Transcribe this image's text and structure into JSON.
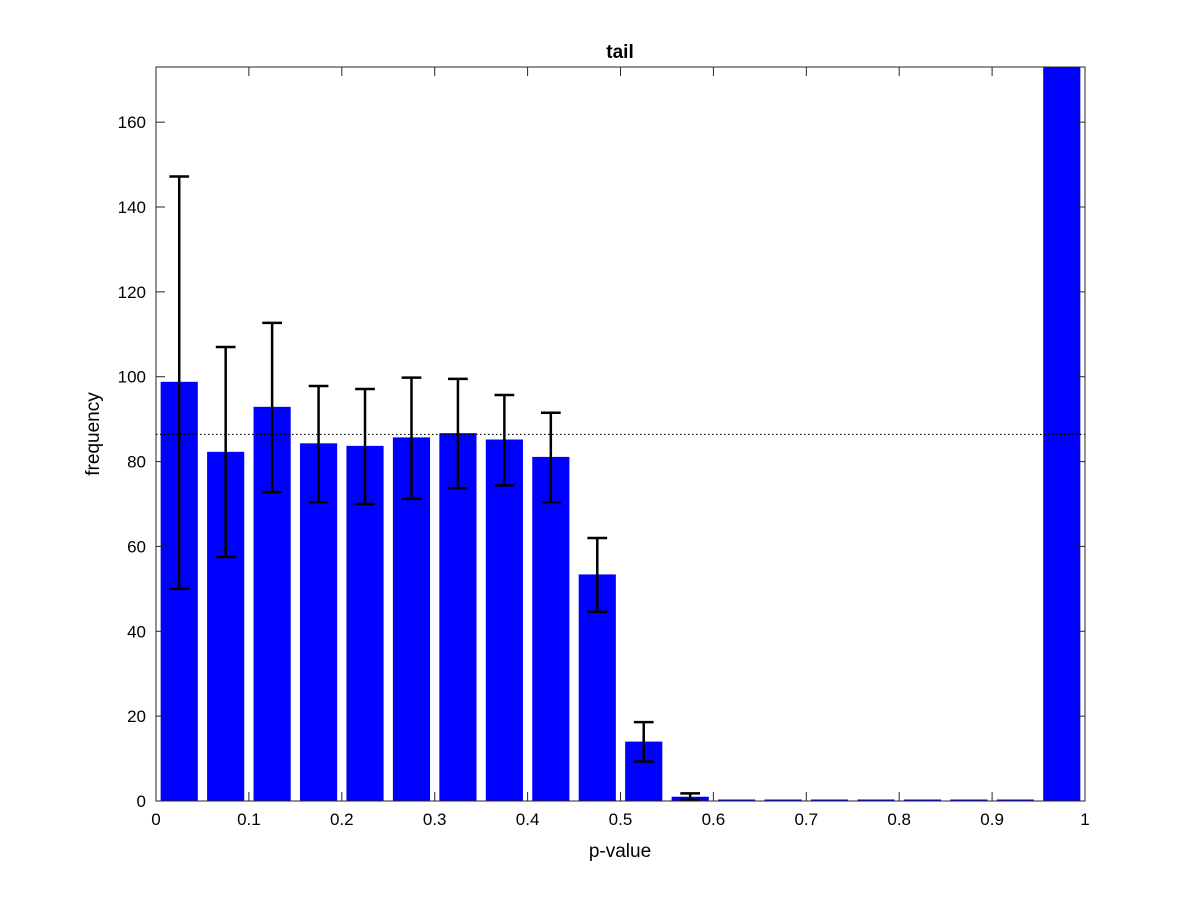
{
  "chart_data": {
    "type": "bar",
    "title": "tail",
    "xlabel": "p-value",
    "ylabel": "frequency",
    "xlim": [
      0,
      1
    ],
    "ylim": [
      0,
      173
    ],
    "xticks": [
      0,
      0.1,
      0.2,
      0.3,
      0.4,
      0.5,
      0.6,
      0.7,
      0.8,
      0.9,
      1
    ],
    "xtick_labels": [
      "0",
      "0.1",
      "0.2",
      "0.3",
      "0.4",
      "0.5",
      "0.6",
      "0.7",
      "0.8",
      "0.9",
      "1"
    ],
    "yticks": [
      0,
      20,
      40,
      60,
      80,
      100,
      120,
      140,
      160
    ],
    "ytick_labels": [
      "0",
      "20",
      "40",
      "60",
      "80",
      "100",
      "120",
      "140",
      "160"
    ],
    "bin_width": 0.05,
    "x": [
      0.025,
      0.075,
      0.125,
      0.175,
      0.225,
      0.275,
      0.325,
      0.375,
      0.425,
      0.475,
      0.525,
      0.575,
      0.625,
      0.675,
      0.725,
      0.775,
      0.825,
      0.875,
      0.925,
      0.975
    ],
    "values": [
      98.8,
      82.3,
      92.9,
      84.3,
      83.7,
      85.7,
      86.7,
      85.2,
      81.1,
      53.4,
      14.0,
      1.0,
      0,
      0,
      0,
      0,
      0,
      0,
      0,
      173
    ],
    "error_low": [
      50.0,
      57.5,
      72.8,
      70.4,
      70.0,
      71.2,
      73.7,
      74.4,
      70.4,
      44.6,
      9.3,
      0.3,
      null,
      null,
      null,
      null,
      null,
      null,
      null,
      null
    ],
    "error_high": [
      147.2,
      107.0,
      112.7,
      97.8,
      97.1,
      99.8,
      99.5,
      95.7,
      91.5,
      62.0,
      18.6,
      1.8,
      null,
      null,
      null,
      null,
      null,
      null,
      null,
      null
    ],
    "reference_line": 86.4,
    "bar_color": "#0000ff",
    "error_color": "#000000",
    "grid": false
  }
}
